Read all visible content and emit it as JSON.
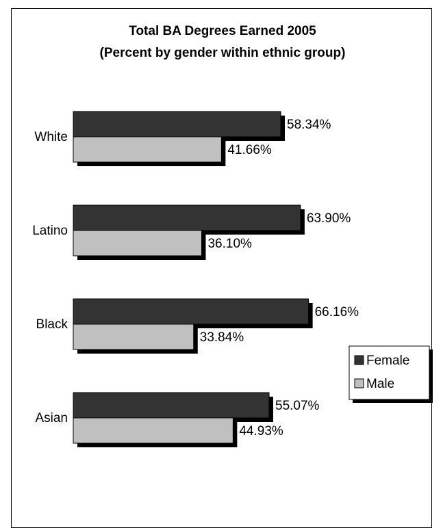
{
  "chart_data": {
    "type": "bar",
    "orientation": "horizontal",
    "title": "Total BA Degrees Earned 2005",
    "subtitle": "(Percent by gender within ethnic group)",
    "categories": [
      "White",
      "Latino",
      "Black",
      "Asian"
    ],
    "series": [
      {
        "name": "Female",
        "values": [
          58.34,
          63.9,
          66.16,
          55.07
        ],
        "labels": [
          "58.34%",
          "63.90%",
          "66.16%",
          "55.07%"
        ],
        "color": "#333333"
      },
      {
        "name": "Male",
        "values": [
          41.66,
          36.1,
          33.84,
          44.93
        ],
        "labels": [
          "41.66%",
          "36.10%",
          "33.84%",
          "44.93%"
        ],
        "color": "#c0c0c0"
      }
    ],
    "xlim": [
      0,
      100
    ],
    "grid": false,
    "legend_position": "right"
  }
}
